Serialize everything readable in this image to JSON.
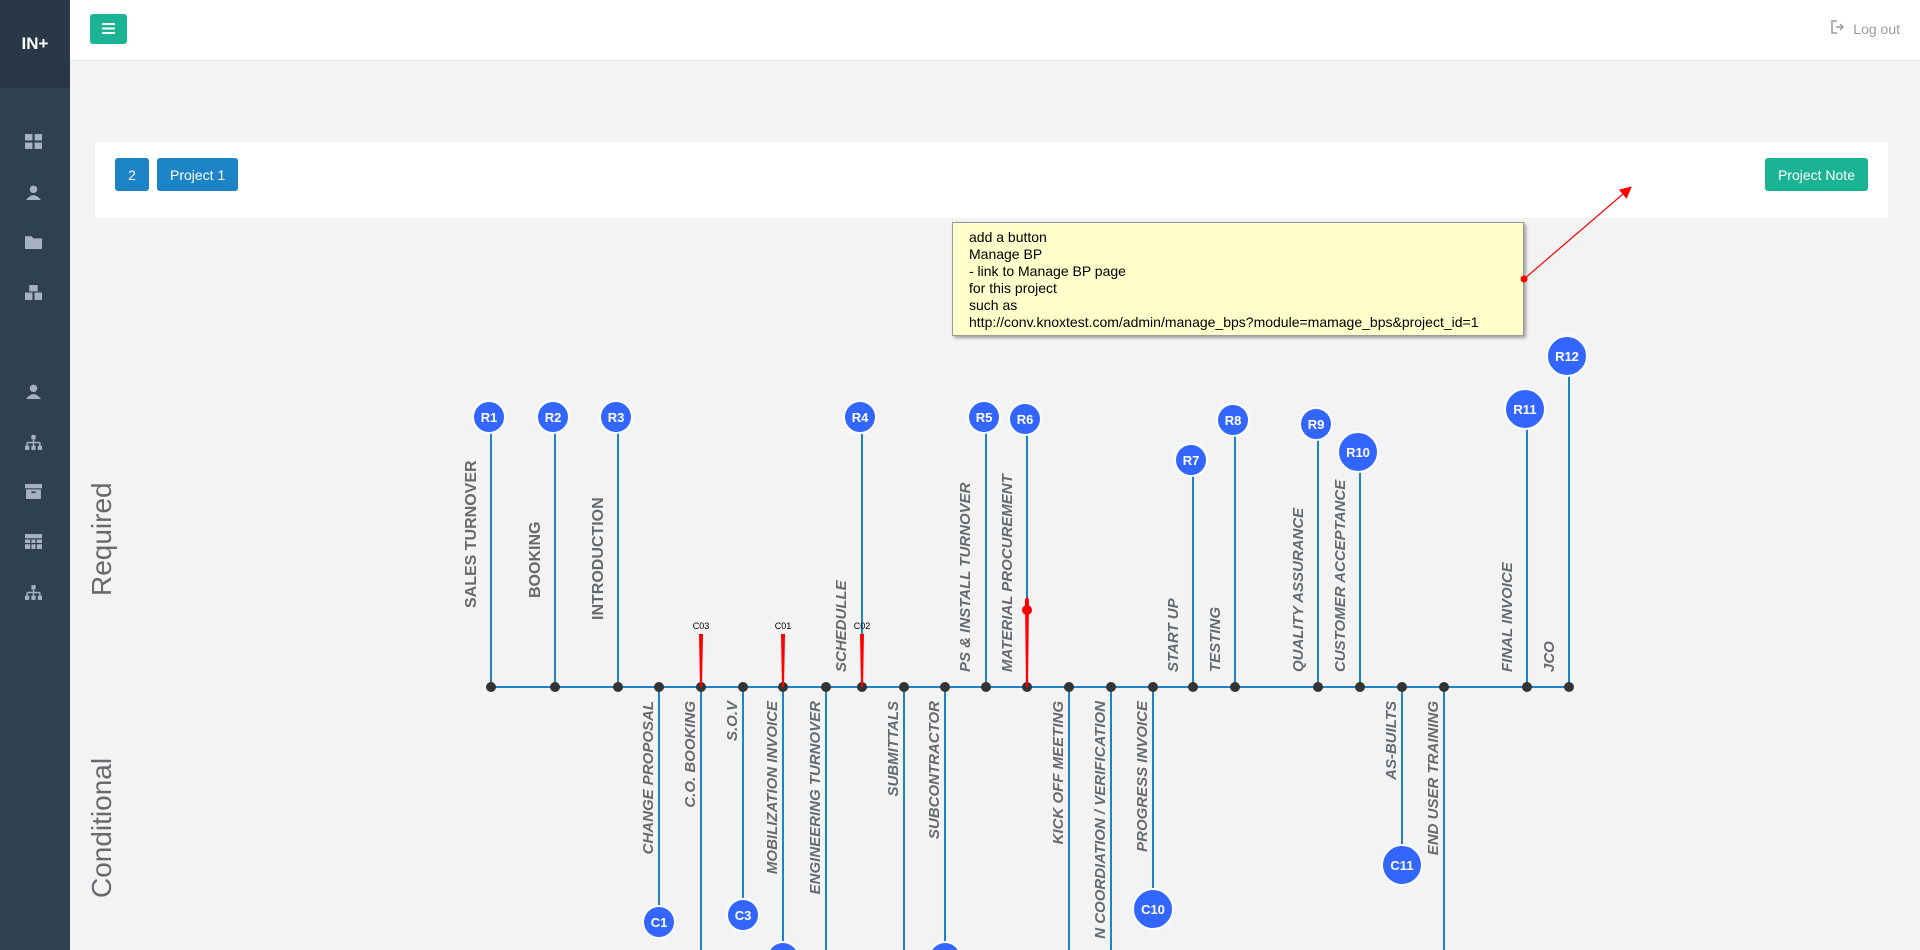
{
  "brand": "IN+",
  "topbar": {
    "logout_label": "Log out"
  },
  "project_bar": {
    "number_label": "2",
    "project_label": "Project 1",
    "note_button_label": "Project Note"
  },
  "note": {
    "lines": [
      "add a button",
      "Manage BP",
      "- link to Manage BP page",
      "for this project",
      "such as",
      "http://conv.knoxtest.com/admin/manage_bps?module=mamage_bps&project_id=1"
    ]
  },
  "sections": {
    "required": "Required",
    "conditional": "Conditional"
  },
  "timeline": {
    "required": [
      {
        "id": "R1",
        "label": "SALES TURNOVER"
      },
      {
        "id": "R2",
        "label": "BOOKING"
      },
      {
        "id": "R3",
        "label": "INTRODUCTION"
      },
      {
        "id": "R4",
        "label": "SCHEDULLE"
      },
      {
        "id": "R5",
        "label": "PS & INSTALL TURNOVER"
      },
      {
        "id": "R6",
        "label": "MATERIAL PROCUREMENT"
      },
      {
        "id": "R7",
        "label": "START UP"
      },
      {
        "id": "R8",
        "label": "TESTING"
      },
      {
        "id": "R9",
        "label": "QUALITY ASSURANCE"
      },
      {
        "id": "R10",
        "label": "CUSTOMER ACCEPTANCE"
      },
      {
        "id": "R11",
        "label": "FINAL INVOICE"
      },
      {
        "id": "R12",
        "label": "JCO"
      }
    ],
    "conditional": [
      {
        "id": "C1",
        "label": "CHANGE PROPOSAL"
      },
      {
        "id": "",
        "label": "C.O. BOOKING"
      },
      {
        "id": "C3",
        "label": "S.O.V"
      },
      {
        "id": "",
        "label": "MOBILIZATION INVOICE"
      },
      {
        "id": "",
        "label": "ENGINEERING TURNOVER"
      },
      {
        "id": "",
        "label": "SUBMITTALS"
      },
      {
        "id": "",
        "label": "SUBCONTRACTOR"
      },
      {
        "id": "",
        "label": "KICK OFF MEETING"
      },
      {
        "id": "",
        "label": "N COORDIATION / VERIFICATION"
      },
      {
        "id": "C10",
        "label": "PROGRESS INVOICE"
      },
      {
        "id": "C11",
        "label": "AS-BUILTS"
      },
      {
        "id": "",
        "label": "END USER TRAINING"
      }
    ],
    "markers": [
      "C03",
      "C01",
      "C02"
    ]
  },
  "colors": {
    "sidebar": "#2f4050",
    "green": "#1ab394",
    "blue": "#1c84c6",
    "node": "#3366ff",
    "line": "#1c84c6",
    "marker": "#ff0000"
  }
}
